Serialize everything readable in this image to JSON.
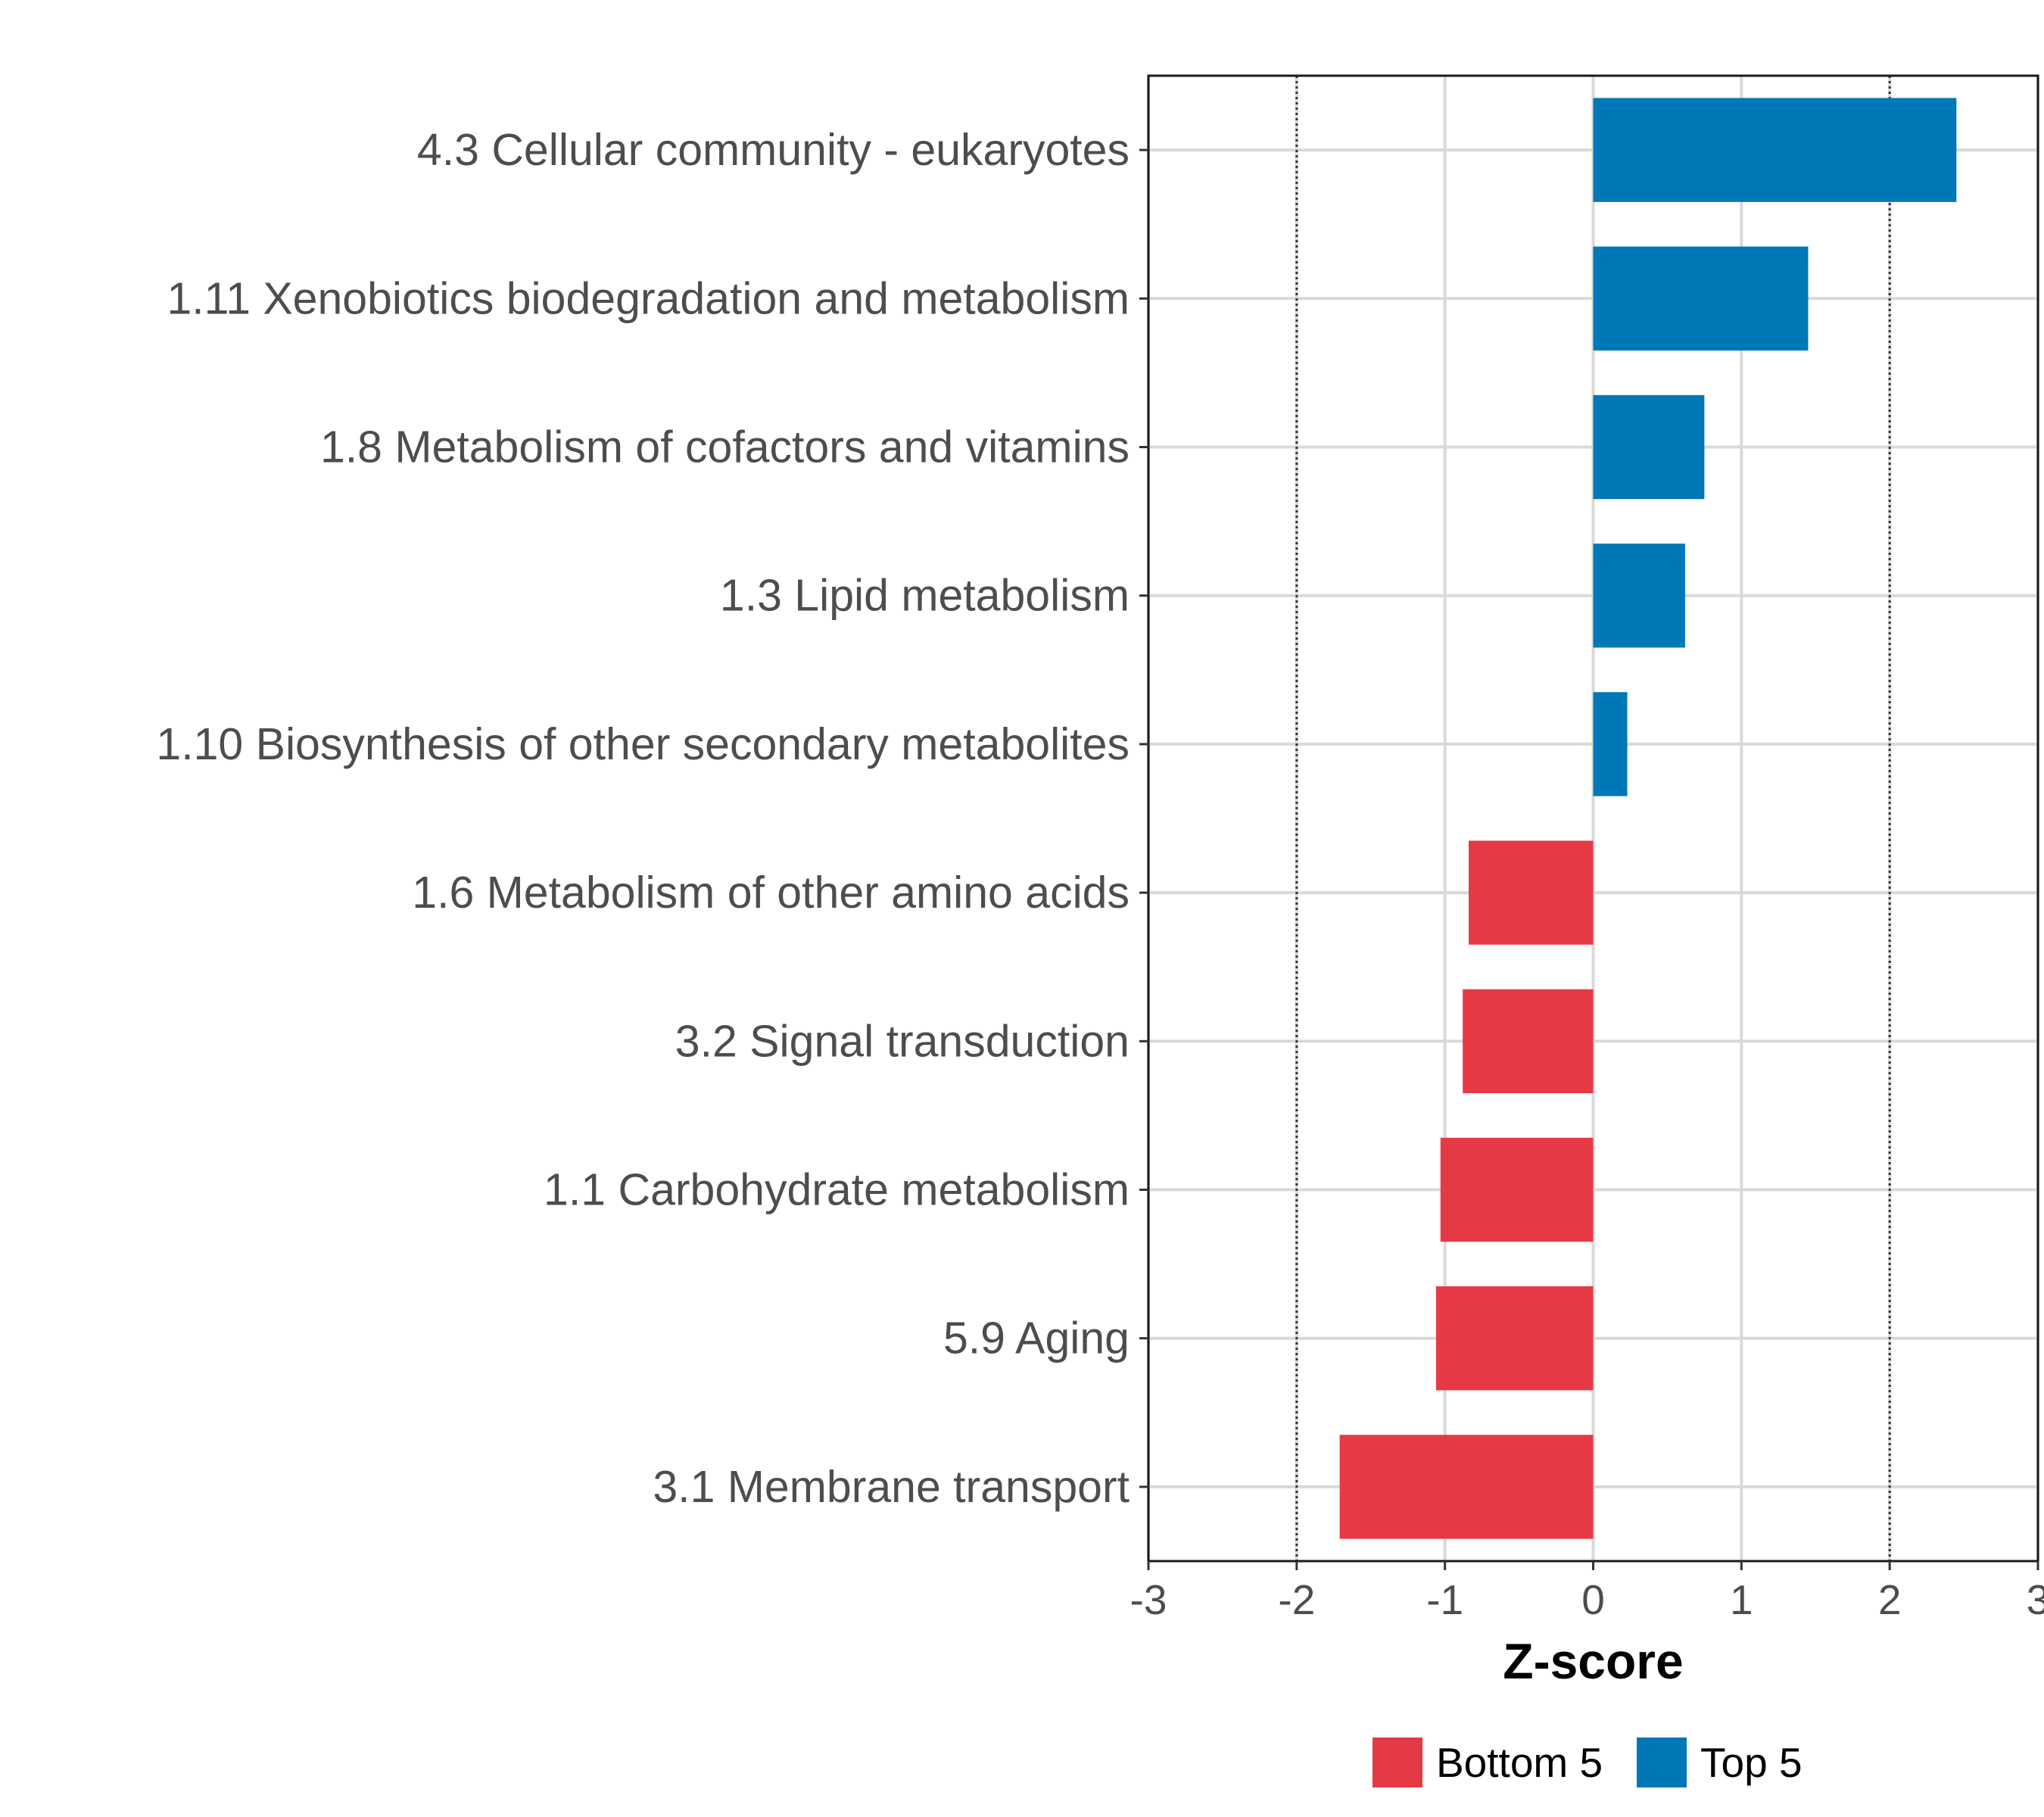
{
  "chart_data": {
    "type": "bar",
    "orientation": "horizontal",
    "title": "",
    "xlabel": "Z-score",
    "ylabel": "",
    "xlim": [
      -3,
      3
    ],
    "x_ticks": [
      -3,
      -2,
      -1,
      0,
      1,
      2,
      3
    ],
    "reference_lines": [
      -2,
      2
    ],
    "grid": true,
    "categories": [
      "4.3 Cellular community - eukaryotes",
      "1.11 Xenobiotics biodegradation and metabolism",
      "1.8 Metabolism of cofactors and vitamins",
      "1.3 Lipid metabolism",
      "1.10 Biosynthesis of other secondary metabolites",
      "1.6 Metabolism of other amino acids",
      "3.2 Signal transduction",
      "1.1 Carbohydrate metabolism",
      "5.9 Aging",
      "3.1 Membrane transport"
    ],
    "values": [
      2.45,
      1.45,
      0.75,
      0.62,
      0.23,
      -0.84,
      -0.88,
      -1.03,
      -1.06,
      -1.71
    ],
    "groups": [
      "Top 5",
      "Top 5",
      "Top 5",
      "Top 5",
      "Top 5",
      "Bottom 5",
      "Bottom 5",
      "Bottom 5",
      "Bottom 5",
      "Bottom 5"
    ],
    "legend": {
      "placement": "bottom",
      "entries": [
        {
          "label": "Bottom 5",
          "color": "#e63946"
        },
        {
          "label": "Top 5",
          "color": "#0077b6"
        }
      ]
    }
  }
}
